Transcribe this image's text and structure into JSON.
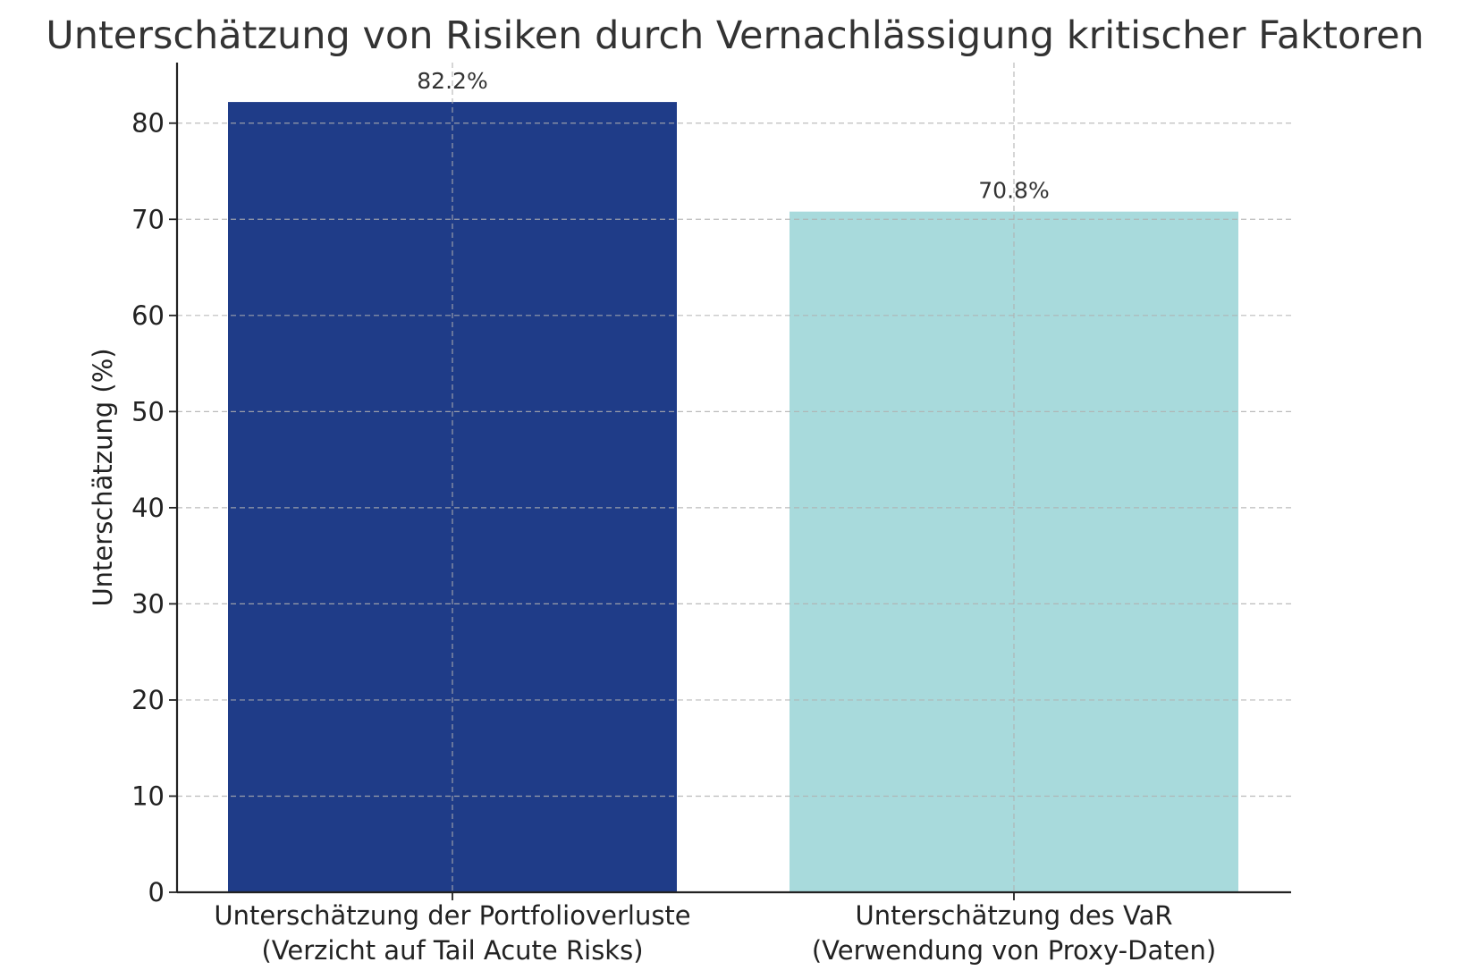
{
  "chart_data": {
    "type": "bar",
    "title": "Unterschätzung von Risiken durch Vernachlässigung kritischer Faktoren",
    "xlabel": "",
    "ylabel": "Unterschätzung (%)",
    "categories": [
      [
        "Unterschätzung der Portfolioverluste",
        "(Verzicht auf Tail Acute Risks)"
      ],
      [
        "Unterschätzung des VaR",
        "(Verwendung von Proxy-Daten)"
      ]
    ],
    "values": [
      82.2,
      70.8
    ],
    "value_labels": [
      "82.2%",
      "70.8%"
    ],
    "colors": [
      "#1f3c88",
      "#a8dadc"
    ],
    "ylim": [
      0,
      86.3
    ],
    "yticks": [
      0,
      10,
      20,
      30,
      40,
      50,
      60,
      70,
      80
    ],
    "grid": true
  }
}
